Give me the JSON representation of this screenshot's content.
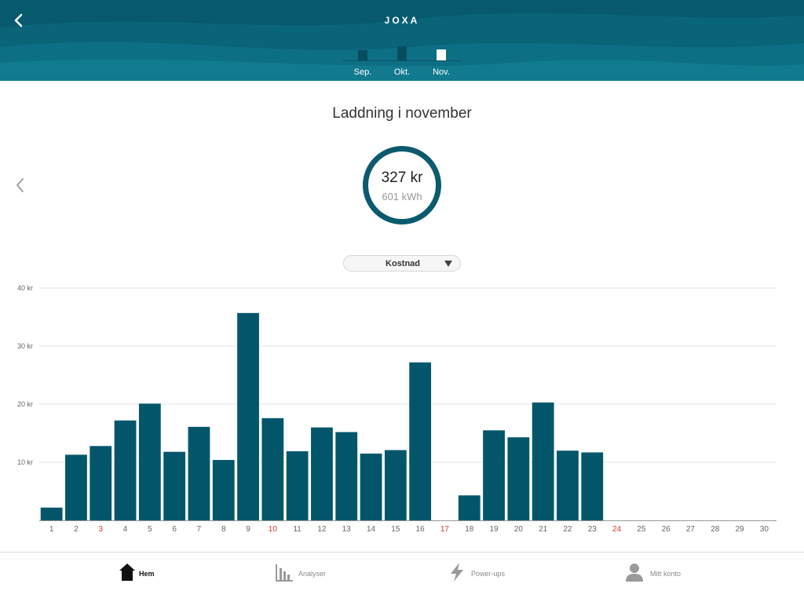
{
  "header": {
    "title": "JOXA",
    "months": [
      {
        "label": "Sep.",
        "level": 0.4,
        "selected": false
      },
      {
        "label": "Okt.",
        "level": 0.55,
        "selected": false
      },
      {
        "label": "Nov.",
        "level": 0.45,
        "selected": true
      }
    ]
  },
  "main": {
    "title": "Laddning i november",
    "amount": "327 kr",
    "energy": "601 kWh"
  },
  "dropdown": {
    "selected": "Kostnad"
  },
  "chart_data": {
    "type": "bar",
    "categories": [
      "1",
      "2",
      "3",
      "4",
      "5",
      "6",
      "7",
      "8",
      "9",
      "10",
      "11",
      "12",
      "13",
      "14",
      "15",
      "16",
      "17",
      "18",
      "19",
      "20",
      "21",
      "22",
      "23",
      "24",
      "25",
      "26",
      "27",
      "28",
      "29",
      "30"
    ],
    "values": [
      2.2,
      11.3,
      12.8,
      17.2,
      20.1,
      11.8,
      16.1,
      10.4,
      35.7,
      17.6,
      11.9,
      16.0,
      15.2,
      11.5,
      12.1,
      27.2,
      0,
      4.3,
      15.5,
      14.3,
      20.3,
      12.0,
      11.7,
      0,
      0,
      0,
      0,
      0,
      0,
      0
    ],
    "highlighted_categories": [
      "3",
      "10",
      "17",
      "24"
    ],
    "yticks": [
      "40 kr",
      "30 kr",
      "20 kr",
      "10 kr"
    ],
    "ytick_values": [
      40,
      30,
      20,
      10
    ],
    "ylim": [
      0,
      40
    ],
    "grid": true,
    "colors": {
      "bar": "#03566a",
      "highlight_label": "#d63a2a",
      "label": "#666666",
      "grid": "#e3e3e3"
    }
  },
  "nav": {
    "items": [
      {
        "label": "Hem",
        "icon": "home-icon",
        "active": true
      },
      {
        "label": "Analyser",
        "icon": "bar-chart-icon",
        "active": false
      },
      {
        "label": "Power-ups",
        "icon": "lightning-icon",
        "active": false
      },
      {
        "label": "Mitt konto",
        "icon": "person-icon",
        "active": false
      }
    ]
  }
}
